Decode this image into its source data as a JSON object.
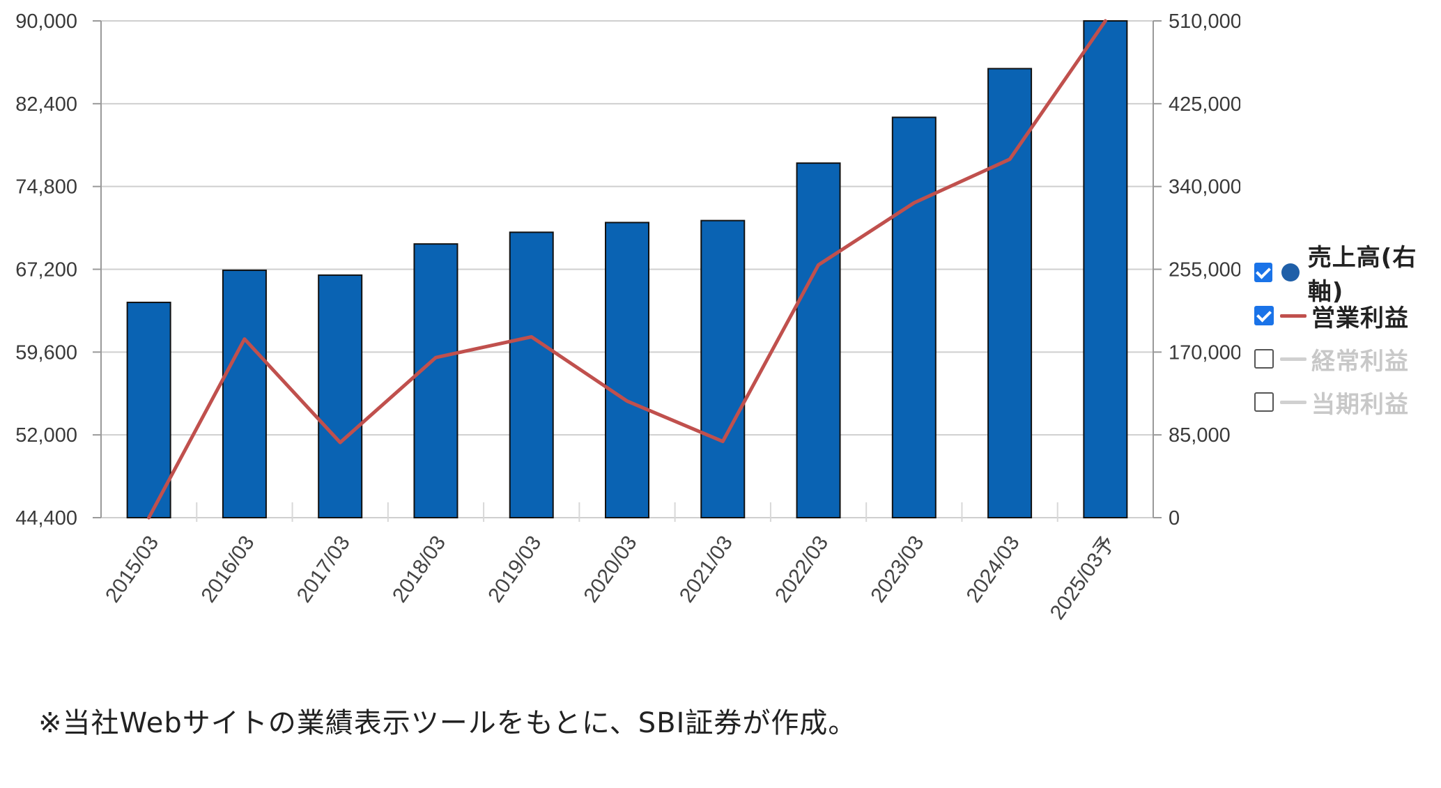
{
  "chart_data": {
    "type": "bar",
    "categories": [
      "2015/03",
      "2016/03",
      "2017/03",
      "2018/03",
      "2019/03",
      "2020/03",
      "2021/03",
      "2022/03",
      "2023/03",
      "2024/03",
      "2025/03予"
    ],
    "left_axis": {
      "min": 44400,
      "max": 90000,
      "ticks": [
        "90,000",
        "82,400",
        "74,800",
        "67,200",
        "59,600",
        "52,000",
        "44,400"
      ]
    },
    "right_axis": {
      "min": 0,
      "max": 510000,
      "ticks": [
        "510,000",
        "425,000",
        "340,000",
        "255,000",
        "170,000",
        "85,000",
        "0"
      ]
    },
    "series": [
      {
        "name": "売上高(右軸)",
        "axis": "right",
        "type": "bar",
        "color": "#0a63b3",
        "values": [
          221000,
          254000,
          249000,
          281000,
          293000,
          303000,
          305000,
          364000,
          411000,
          461000,
          510000
        ]
      },
      {
        "name": "営業利益",
        "axis": "left",
        "type": "line",
        "color": "#c0504d",
        "values": [
          44400,
          60800,
          51300,
          59100,
          61000,
          55100,
          51400,
          67600,
          73300,
          77300,
          90000
        ]
      }
    ],
    "grid": true,
    "legend": "right"
  },
  "legend": [
    {
      "label": "売上高(右軸)",
      "checked": true,
      "symbol": "dot",
      "color": "#1f5fa8"
    },
    {
      "label": "営業利益",
      "checked": true,
      "symbol": "line",
      "color": "#c0504d"
    },
    {
      "label": "経常利益",
      "checked": false,
      "symbol": "line",
      "color": "#d0d0d0"
    },
    {
      "label": "当期利益",
      "checked": false,
      "symbol": "line",
      "color": "#d0d0d0"
    }
  ],
  "note": "※当社Webサイトの業績表示ツールをもとに、SBI証券が作成。"
}
